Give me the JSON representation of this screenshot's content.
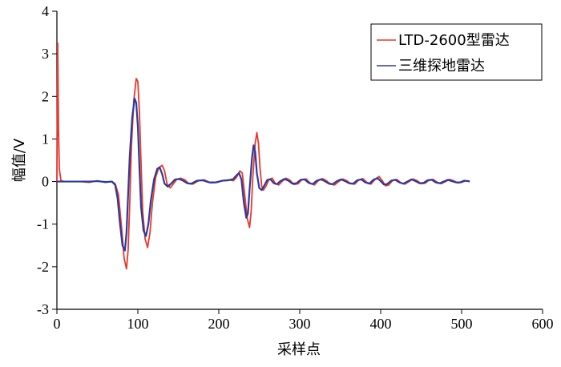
{
  "chart_data": {
    "type": "line",
    "title": "",
    "xlabel": "采样点",
    "ylabel": "幅值/V",
    "xlim": [
      0,
      600
    ],
    "ylim": [
      -3,
      4
    ],
    "xticks": [
      "0",
      "100",
      "200",
      "300",
      "400",
      "500",
      "600"
    ],
    "yticks": [
      "-3",
      "-2",
      "-1",
      "0",
      "1",
      "2",
      "3",
      "4"
    ],
    "grid": false,
    "legend_position": "top-right",
    "series": [
      {
        "name": "LTD-2600型雷达",
        "color": "#e8382e",
        "points": [
          [
            0,
            0
          ],
          [
            1,
            3.25
          ],
          [
            2,
            1.2
          ],
          [
            3,
            0.3
          ],
          [
            5,
            0.02
          ],
          [
            10,
            0
          ],
          [
            20,
            0
          ],
          [
            30,
            0
          ],
          [
            40,
            -0.02
          ],
          [
            50,
            0.02
          ],
          [
            60,
            -0.02
          ],
          [
            68,
            0
          ],
          [
            72,
            -0.05
          ],
          [
            76,
            -0.3
          ],
          [
            80,
            -1.1
          ],
          [
            83,
            -1.8
          ],
          [
            86,
            -2.05
          ],
          [
            88,
            -1.6
          ],
          [
            90,
            -0.5
          ],
          [
            92,
            0.8
          ],
          [
            95,
            1.9
          ],
          [
            98,
            2.42
          ],
          [
            100,
            2.35
          ],
          [
            102,
            1.6
          ],
          [
            104,
            0.4
          ],
          [
            106,
            -0.7
          ],
          [
            109,
            -1.35
          ],
          [
            112,
            -1.55
          ],
          [
            115,
            -1.2
          ],
          [
            118,
            -0.5
          ],
          [
            122,
            0.1
          ],
          [
            126,
            0.33
          ],
          [
            130,
            0.38
          ],
          [
            133,
            0.25
          ],
          [
            136,
            -0.05
          ],
          [
            140,
            -0.15
          ],
          [
            144,
            -0.05
          ],
          [
            148,
            0.05
          ],
          [
            153,
            0.08
          ],
          [
            158,
            0.04
          ],
          [
            163,
            -0.05
          ],
          [
            168,
            -0.06
          ],
          [
            175,
            0.02
          ],
          [
            182,
            0.04
          ],
          [
            190,
            -0.03
          ],
          [
            198,
            -0.02
          ],
          [
            205,
            0.02
          ],
          [
            212,
            0.04
          ],
          [
            218,
            0.02
          ],
          [
            222,
            0.1
          ],
          [
            226,
            0.25
          ],
          [
            229,
            0.2
          ],
          [
            232,
            -0.3
          ],
          [
            235,
            -0.85
          ],
          [
            238,
            -1.08
          ],
          [
            240,
            -0.7
          ],
          [
            242,
            0.1
          ],
          [
            245,
            0.9
          ],
          [
            247,
            1.15
          ],
          [
            249,
            0.9
          ],
          [
            251,
            0.3
          ],
          [
            253,
            -0.1
          ],
          [
            255,
            -0.2
          ],
          [
            258,
            -0.12
          ],
          [
            262,
            0.05
          ],
          [
            266,
            0.08
          ],
          [
            270,
            -0.05
          ],
          [
            274,
            -0.08
          ],
          [
            278,
            0
          ],
          [
            283,
            0.08
          ],
          [
            288,
            0.03
          ],
          [
            293,
            -0.07
          ],
          [
            298,
            -0.05
          ],
          [
            303,
            0.05
          ],
          [
            308,
            0.06
          ],
          [
            313,
            -0.04
          ],
          [
            318,
            -0.08
          ],
          [
            323,
            0.02
          ],
          [
            328,
            0.07
          ],
          [
            333,
            0.02
          ],
          [
            338,
            -0.06
          ],
          [
            343,
            -0.08
          ],
          [
            348,
            0
          ],
          [
            353,
            0.06
          ],
          [
            358,
            0.02
          ],
          [
            363,
            -0.05
          ],
          [
            368,
            -0.06
          ],
          [
            373,
            0.04
          ],
          [
            378,
            0.07
          ],
          [
            383,
            -0.02
          ],
          [
            388,
            -0.06
          ],
          [
            393,
            0.05
          ],
          [
            398,
            0.12
          ],
          [
            402,
            0.02
          ],
          [
            406,
            -0.1
          ],
          [
            410,
            -0.08
          ],
          [
            415,
            0.03
          ],
          [
            420,
            0.05
          ],
          [
            425,
            -0.03
          ],
          [
            430,
            -0.06
          ],
          [
            435,
            0
          ],
          [
            440,
            0.06
          ],
          [
            445,
            0.02
          ],
          [
            450,
            -0.05
          ],
          [
            455,
            -0.04
          ],
          [
            460,
            0.04
          ],
          [
            465,
            0.05
          ],
          [
            470,
            -0.02
          ],
          [
            475,
            -0.05
          ],
          [
            480,
            0
          ],
          [
            485,
            0.05
          ],
          [
            490,
            0.02
          ],
          [
            495,
            -0.03
          ],
          [
            500,
            -0.02
          ],
          [
            505,
            0.02
          ],
          [
            510,
            0.01
          ]
        ]
      },
      {
        "name": "三维探地雷达",
        "color": "#2b3a9c",
        "points": [
          [
            0,
            0
          ],
          [
            10,
            0
          ],
          [
            20,
            0
          ],
          [
            30,
            0
          ],
          [
            40,
            0
          ],
          [
            50,
            0.01
          ],
          [
            60,
            -0.01
          ],
          [
            68,
            0
          ],
          [
            72,
            -0.08
          ],
          [
            75,
            -0.4
          ],
          [
            78,
            -1.0
          ],
          [
            81,
            -1.5
          ],
          [
            84,
            -1.62
          ],
          [
            86,
            -1.2
          ],
          [
            88,
            -0.3
          ],
          [
            90,
            0.6
          ],
          [
            93,
            1.5
          ],
          [
            96,
            1.95
          ],
          [
            98,
            1.85
          ],
          [
            100,
            1.3
          ],
          [
            102,
            0.3
          ],
          [
            104,
            -0.6
          ],
          [
            107,
            -1.15
          ],
          [
            110,
            -1.28
          ],
          [
            113,
            -1.0
          ],
          [
            116,
            -0.45
          ],
          [
            120,
            0.05
          ],
          [
            124,
            0.3
          ],
          [
            127,
            0.33
          ],
          [
            130,
            0.18
          ],
          [
            133,
            -0.05
          ],
          [
            137,
            -0.12
          ],
          [
            141,
            -0.05
          ],
          [
            146,
            0.05
          ],
          [
            151,
            0.06
          ],
          [
            156,
            0.02
          ],
          [
            161,
            -0.04
          ],
          [
            166,
            -0.05
          ],
          [
            173,
            0.02
          ],
          [
            180,
            0.03
          ],
          [
            188,
            -0.02
          ],
          [
            196,
            -0.02
          ],
          [
            204,
            0.02
          ],
          [
            212,
            0.03
          ],
          [
            218,
            0.06
          ],
          [
            222,
            0.15
          ],
          [
            225,
            0.2
          ],
          [
            228,
            0.05
          ],
          [
            231,
            -0.5
          ],
          [
            234,
            -0.85
          ],
          [
            236,
            -0.75
          ],
          [
            238,
            -0.2
          ],
          [
            241,
            0.55
          ],
          [
            243,
            0.85
          ],
          [
            245,
            0.7
          ],
          [
            247,
            0.2
          ],
          [
            250,
            -0.15
          ],
          [
            253,
            -0.2
          ],
          [
            256,
            -0.1
          ],
          [
            260,
            0.04
          ],
          [
            264,
            0.05
          ],
          [
            268,
            -0.04
          ],
          [
            272,
            -0.06
          ],
          [
            276,
            0.01
          ],
          [
            281,
            0.06
          ],
          [
            286,
            0.02
          ],
          [
            291,
            -0.05
          ],
          [
            296,
            -0.04
          ],
          [
            301,
            0.04
          ],
          [
            306,
            0.05
          ],
          [
            311,
            -0.03
          ],
          [
            316,
            -0.06
          ],
          [
            321,
            0.02
          ],
          [
            326,
            0.05
          ],
          [
            331,
            0.01
          ],
          [
            336,
            -0.05
          ],
          [
            341,
            -0.06
          ],
          [
            346,
            0.01
          ],
          [
            351,
            0.05
          ],
          [
            356,
            0.01
          ],
          [
            361,
            -0.04
          ],
          [
            366,
            -0.05
          ],
          [
            371,
            0.03
          ],
          [
            376,
            0.05
          ],
          [
            381,
            -0.02
          ],
          [
            386,
            -0.05
          ],
          [
            391,
            0.04
          ],
          [
            396,
            0.08
          ],
          [
            400,
            0.01
          ],
          [
            404,
            -0.07
          ],
          [
            408,
            -0.06
          ],
          [
            413,
            0.02
          ],
          [
            418,
            0.04
          ],
          [
            423,
            -0.02
          ],
          [
            428,
            -0.05
          ],
          [
            433,
            0
          ],
          [
            438,
            0.05
          ],
          [
            443,
            0.01
          ],
          [
            448,
            -0.04
          ],
          [
            453,
            -0.03
          ],
          [
            458,
            0.03
          ],
          [
            463,
            0.04
          ],
          [
            468,
            -0.02
          ],
          [
            473,
            -0.04
          ],
          [
            478,
            0
          ],
          [
            483,
            0.04
          ],
          [
            488,
            0.01
          ],
          [
            493,
            -0.02
          ],
          [
            498,
            -0.02
          ],
          [
            503,
            0.02
          ],
          [
            508,
            0.01
          ],
          [
            510,
            0
          ]
        ]
      }
    ]
  }
}
